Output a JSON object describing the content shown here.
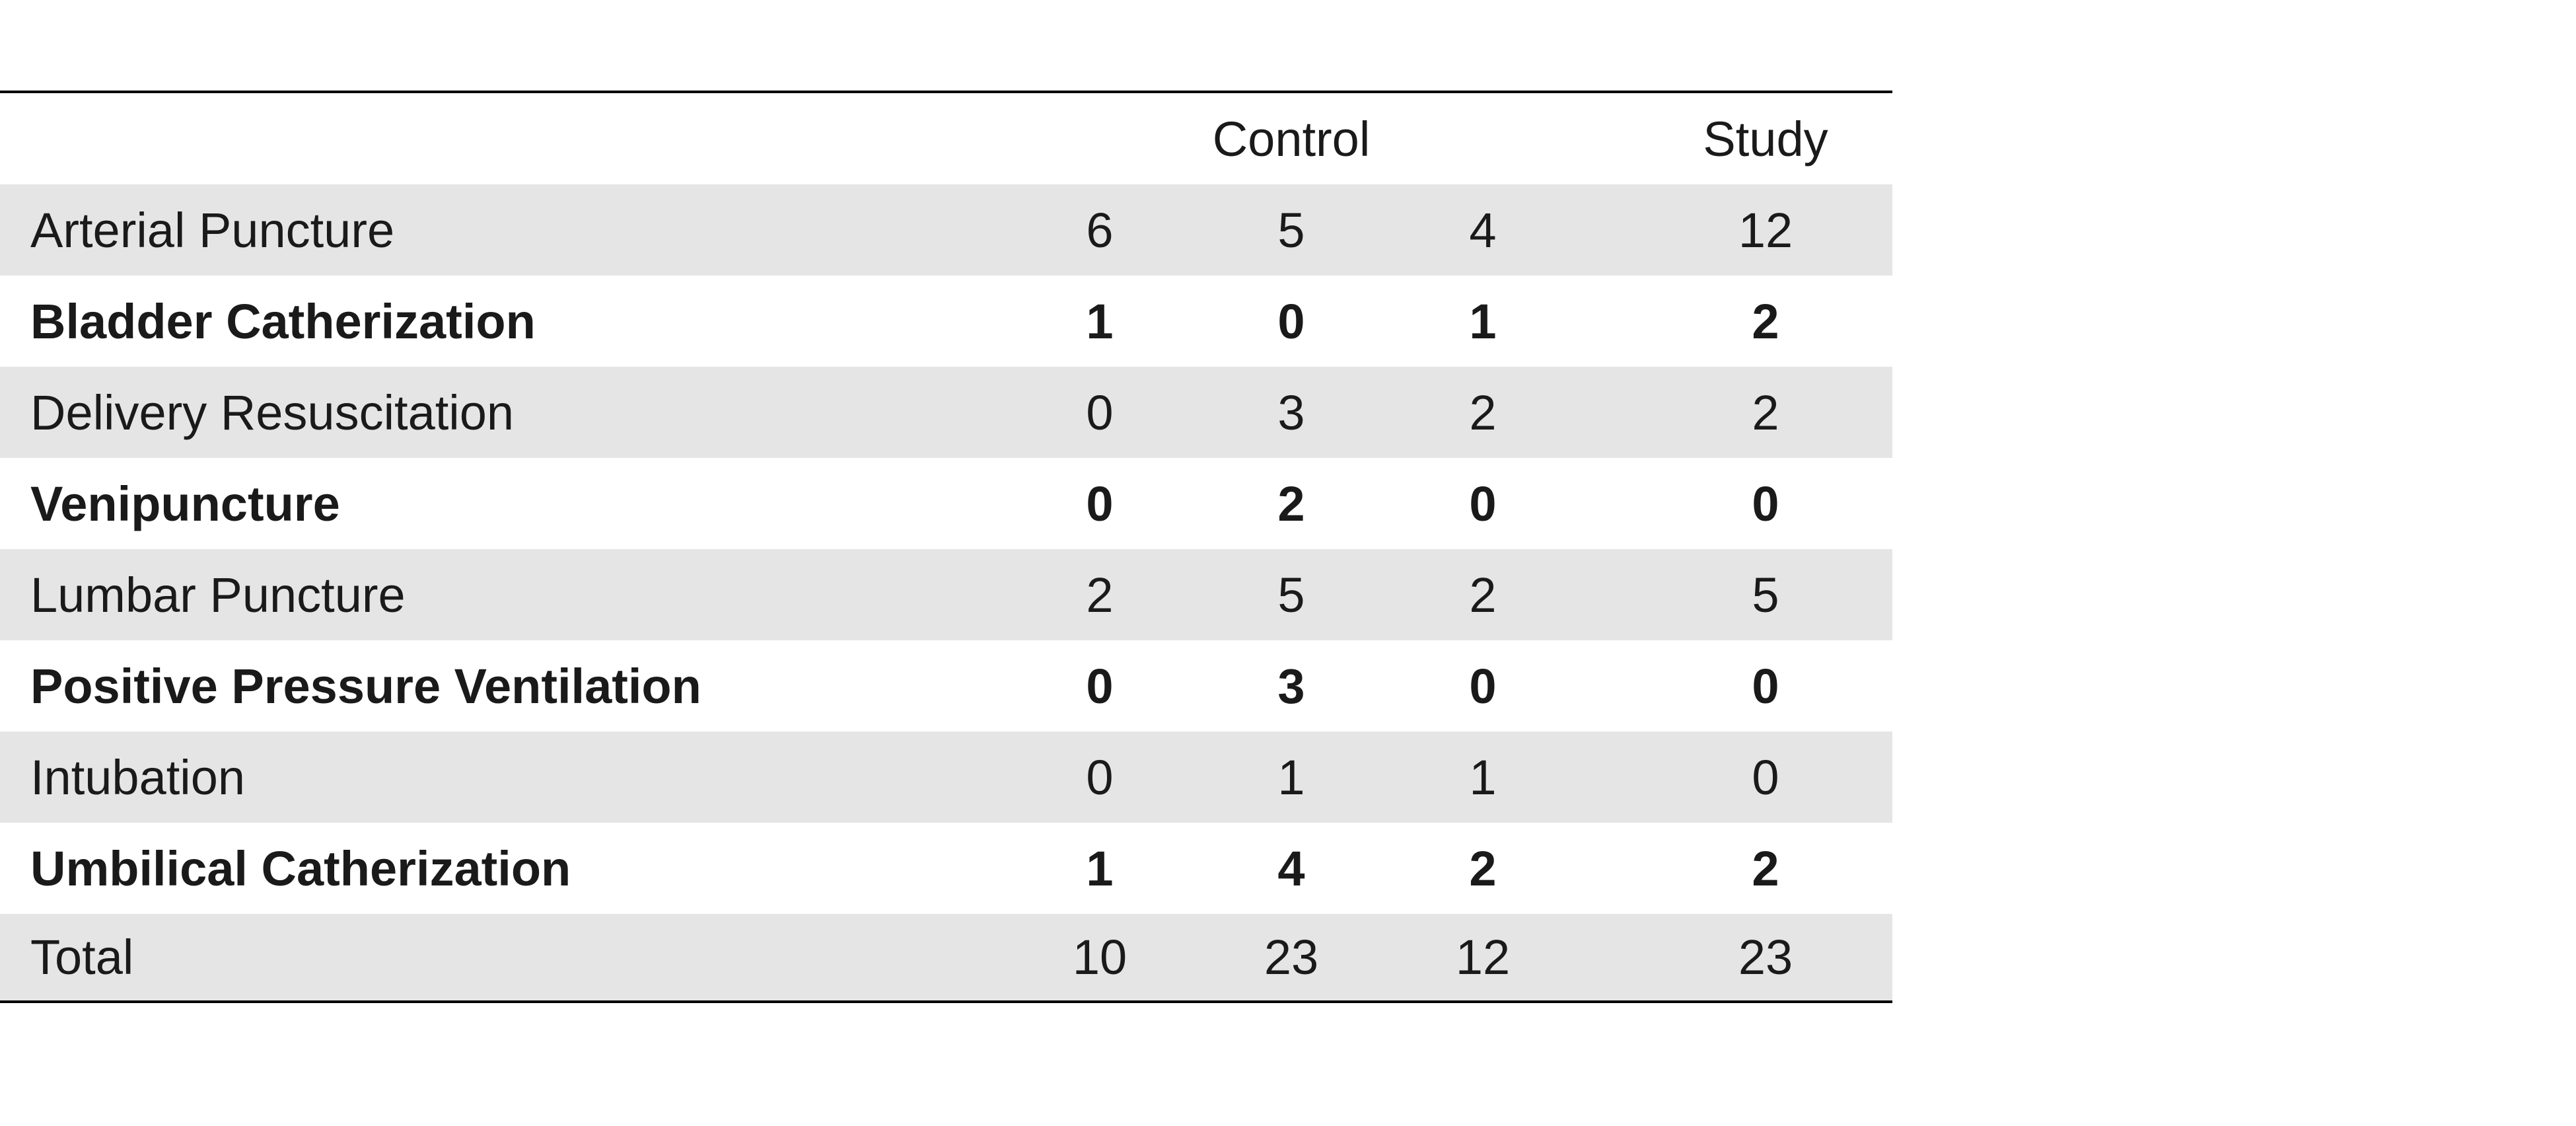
{
  "header": {
    "control_label": "Control",
    "study_label": "Study"
  },
  "rows": [
    {
      "label": "Arterial Puncture",
      "values": [
        "6",
        "5",
        "4",
        "12"
      ]
    },
    {
      "label": "Bladder Catherization",
      "values": [
        "1",
        "0",
        "1",
        "2"
      ]
    },
    {
      "label": "Delivery Resuscitation",
      "values": [
        "0",
        "3",
        "2",
        "2"
      ]
    },
    {
      "label": "Venipuncture",
      "values": [
        "0",
        "2",
        "0",
        "0"
      ]
    },
    {
      "label": "Lumbar Puncture",
      "values": [
        "2",
        "5",
        "2",
        "5"
      ]
    },
    {
      "label": "Positive Pressure Ventilation",
      "values": [
        "0",
        "3",
        "0",
        "0"
      ]
    },
    {
      "label": "Intubation",
      "values": [
        "0",
        "1",
        "1",
        "0"
      ]
    },
    {
      "label": "Umbilical Catherization",
      "values": [
        "1",
        "4",
        "2",
        "2"
      ]
    }
  ],
  "total": {
    "label": "Total",
    "values": [
      "10",
      "23",
      "12",
      "23"
    ]
  },
  "colors": {
    "shaded_row": "#e6e5e6",
    "rule": "#000000"
  }
}
